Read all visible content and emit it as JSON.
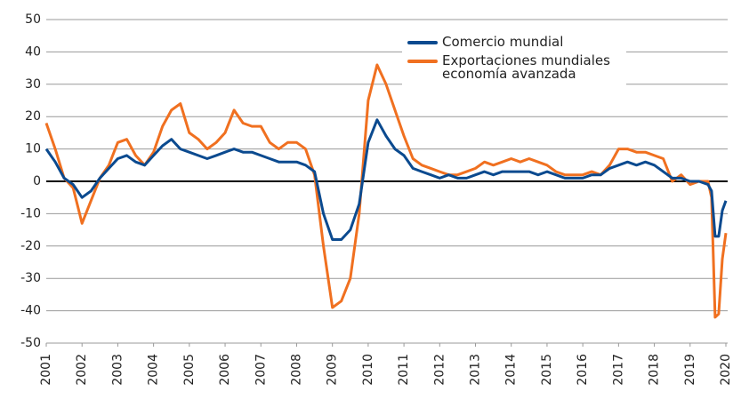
{
  "chart_data": {
    "type": "line",
    "x": [
      2001,
      2001.25,
      2001.5,
      2001.75,
      2002,
      2002.25,
      2002.5,
      2002.75,
      2003,
      2003.25,
      2003.5,
      2003.75,
      2004,
      2004.25,
      2004.5,
      2004.75,
      2005,
      2005.25,
      2005.5,
      2005.75,
      2006,
      2006.25,
      2006.5,
      2006.75,
      2007,
      2007.25,
      2007.5,
      2007.75,
      2008,
      2008.25,
      2008.5,
      2008.75,
      2009,
      2009.25,
      2009.5,
      2009.75,
      2010,
      2010.25,
      2010.5,
      2010.75,
      2011,
      2011.25,
      2011.5,
      2011.75,
      2012,
      2012.25,
      2012.5,
      2012.75,
      2013,
      2013.25,
      2013.5,
      2013.75,
      2014,
      2014.25,
      2014.5,
      2014.75,
      2015,
      2015.25,
      2015.5,
      2015.75,
      2016,
      2016.25,
      2016.5,
      2016.75,
      2017,
      2017.25,
      2017.5,
      2017.75,
      2018,
      2018.25,
      2018.5,
      2018.75,
      2019,
      2019.25,
      2019.5,
      2019.6,
      2019.7,
      2019.8,
      2019.9,
      2020
    ],
    "series": [
      {
        "name": "Comercio mundial",
        "color": "#0b4a8f",
        "values": [
          10,
          6,
          1,
          -1,
          -5,
          -3,
          1,
          4,
          7,
          8,
          6,
          5,
          8,
          11,
          13,
          10,
          9,
          8,
          7,
          8,
          9,
          10,
          9,
          9,
          8,
          7,
          6,
          6,
          6,
          5,
          3,
          -10,
          -18,
          -18,
          -15,
          -7,
          12,
          19,
          14,
          10,
          8,
          4,
          3,
          2,
          1,
          2,
          1,
          1,
          2,
          3,
          2,
          3,
          3,
          3,
          3,
          2,
          3,
          2,
          1,
          1,
          1,
          2,
          2,
          4,
          5,
          6,
          5,
          6,
          5,
          3,
          1,
          1,
          0,
          0,
          -1,
          -3,
          -17,
          -17,
          -9,
          -6
        ]
      },
      {
        "name": "Exportaciones mundiales economía avanzada",
        "color": "#f07020",
        "values": [
          18,
          10,
          1,
          -2,
          -13,
          -6,
          1,
          5,
          12,
          13,
          8,
          5,
          9,
          17,
          22,
          24,
          15,
          13,
          10,
          12,
          15,
          22,
          18,
          17,
          17,
          12,
          10,
          12,
          12,
          10,
          2,
          -20,
          -39,
          -37,
          -30,
          -10,
          25,
          36,
          30,
          22,
          14,
          7,
          5,
          4,
          3,
          2,
          2,
          3,
          4,
          6,
          5,
          6,
          7,
          6,
          7,
          6,
          5,
          3,
          2,
          2,
          2,
          3,
          2,
          5,
          10,
          10,
          9,
          9,
          8,
          7,
          0,
          2,
          -1,
          0,
          0,
          -5,
          -42,
          -41,
          -24,
          -16
        ]
      }
    ],
    "xlim": [
      2001,
      2020.05
    ],
    "xticks": [
      2001,
      2002,
      2003,
      2004,
      2005,
      2006,
      2007,
      2008,
      2009,
      2010,
      2011,
      2012,
      2013,
      2014,
      2015,
      2016,
      2017,
      2018,
      2019,
      2020
    ],
    "ylim": [
      -50,
      50
    ],
    "yticks": [
      -50,
      -40,
      -30,
      -20,
      -10,
      0,
      10,
      20,
      30,
      40,
      50
    ],
    "grid": true
  }
}
